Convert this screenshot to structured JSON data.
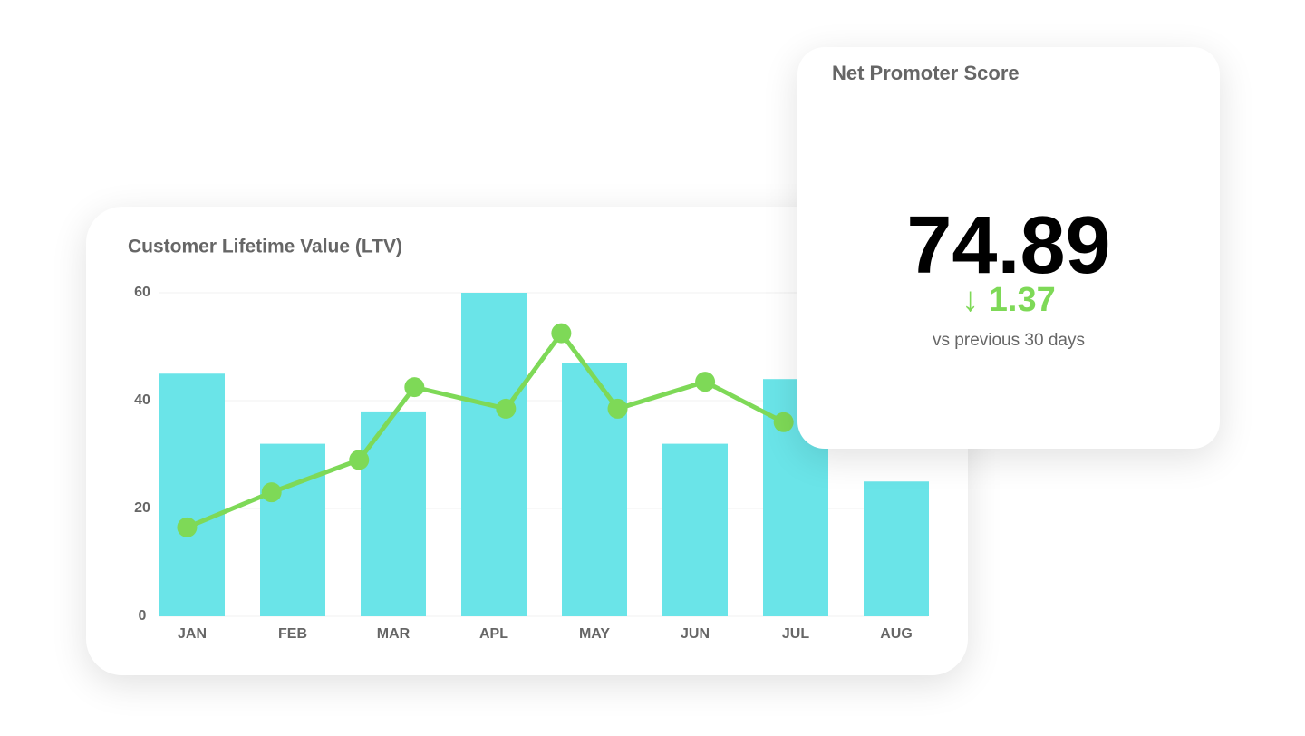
{
  "chart_data": {
    "type": "bar",
    "title": "Customer Lifetime Value (LTV)",
    "categories": [
      "JAN",
      "FEB",
      "MAR",
      "APL",
      "MAY",
      "JUN",
      "JUL",
      "AUG"
    ],
    "series": [
      {
        "type": "bar",
        "color": "#6ae4e8",
        "values": [
          45,
          32,
          38,
          60,
          47,
          32,
          44,
          25
        ]
      },
      {
        "type": "line",
        "color": "#7ed957",
        "x": [
          -0.05,
          0.79,
          1.66,
          2.21,
          3.12,
          3.67,
          4.23,
          5.1,
          5.88
        ],
        "values": [
          16.5,
          23,
          29,
          42.5,
          38.5,
          52.5,
          38.5,
          43.5,
          36
        ]
      }
    ],
    "ylim": [
      0,
      60
    ],
    "yticks": [
      0,
      20,
      40,
      60
    ],
    "grid": true
  },
  "kpi_card": {
    "title": "Net Promoter Score",
    "value": "74.89",
    "change": "↓ 1.37",
    "comparison": "vs previous 30 days"
  }
}
